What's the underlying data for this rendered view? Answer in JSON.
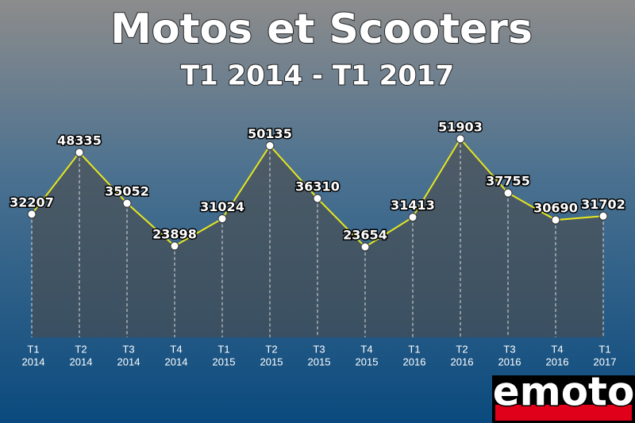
{
  "chart_data": {
    "type": "line",
    "title": "Motos et Scooters",
    "subtitle": "T1 2014 - T1 2017",
    "categories": [
      [
        "T1",
        "2014"
      ],
      [
        "T2",
        "2014"
      ],
      [
        "T3",
        "2014"
      ],
      [
        "T4",
        "2014"
      ],
      [
        "T1",
        "2015"
      ],
      [
        "T2",
        "2015"
      ],
      [
        "T3",
        "2015"
      ],
      [
        "T4",
        "2015"
      ],
      [
        "T1",
        "2016"
      ],
      [
        "T2",
        "2016"
      ],
      [
        "T3",
        "2016"
      ],
      [
        "T4",
        "2016"
      ],
      [
        "T1",
        "2017"
      ]
    ],
    "values": [
      32207,
      48335,
      35052,
      23898,
      31024,
      50135,
      36310,
      23654,
      31413,
      51903,
      37755,
      30690,
      31702
    ],
    "color": "#e6e61e",
    "ylim": [
      0,
      60000
    ]
  },
  "logo": "emoto"
}
